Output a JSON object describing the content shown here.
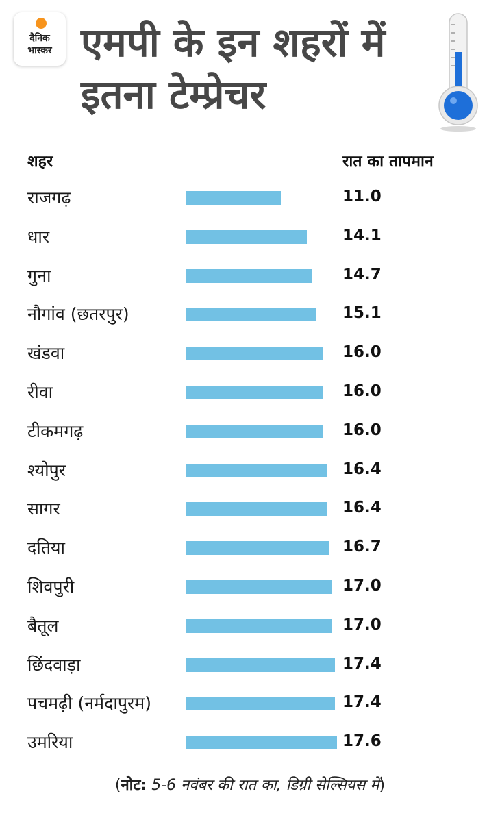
{
  "brand": {
    "line1": "दैनिक",
    "line2": "भास्कर"
  },
  "title": "एमपी के इन शहरों में इतना टेम्प्रेचर",
  "columns": {
    "city": "शहर",
    "temp": "रात का तापमान"
  },
  "note": {
    "prefix": "नोट:",
    "text": "5-6 नवंबर की रात का, डिग्री सेल्सियस में",
    "open": "(",
    "close": ")"
  },
  "colors": {
    "bar": "#72c1e4",
    "thermometer": "#1e6fd9",
    "title": "#474747"
  },
  "chart_data": {
    "type": "bar",
    "orientation": "horizontal",
    "title": "एमपी के इन शहरों में इतना टेम्प्रेचर",
    "xlabel": "रात का तापमान",
    "ylabel": "शहर",
    "categories": [
      "राजगढ़",
      "धार",
      "गुना",
      "नौगांव (छतरपुर)",
      "खंडवा",
      "रीवा",
      "टीकमगढ़",
      "श्योपुर",
      "सागर",
      "दतिया",
      "शिवपुरी",
      "बैतूल",
      "छिंदवाड़ा",
      "पचमढ़ी (नर्मदापुरम)",
      "उमरिया"
    ],
    "values": [
      11.0,
      14.1,
      14.7,
      15.1,
      16.0,
      16.0,
      16.0,
      16.4,
      16.4,
      16.7,
      17.0,
      17.0,
      17.4,
      17.4,
      17.6
    ],
    "labels": [
      "11.0",
      "14.1",
      "14.7",
      "15.1",
      "16.0",
      "16.0",
      "16.0",
      "16.4",
      "16.4",
      "16.7",
      "17.0",
      "17.0",
      "17.4",
      "17.4",
      "17.6"
    ],
    "xlim": [
      0,
      17.6
    ]
  }
}
